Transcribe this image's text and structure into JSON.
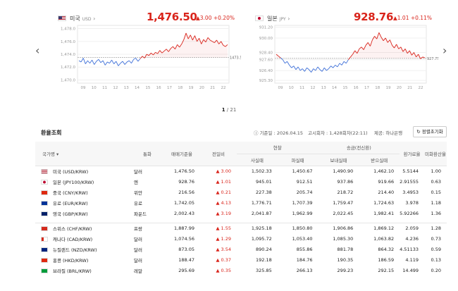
{
  "cards": [
    {
      "name": "미국",
      "unit": "USD",
      "price": "1,476.50",
      "change": "▲3.00",
      "pct": "+0.20%",
      "ymax": "1,478.0",
      "yticks": [
        "1,478.0",
        "1,476.0",
        "1,474.0",
        "1,472.0",
        "1,470.0"
      ],
      "ytickvals": [
        1478,
        1476,
        1474,
        1472,
        1470
      ],
      "xticks": [
        "09",
        "10",
        "11",
        "12",
        "13",
        "14",
        "15",
        "16",
        "17",
        "18",
        "19",
        "20",
        "21",
        "22"
      ],
      "baseline": 1473.5,
      "baseline_label": "1473.5",
      "ymin": 1469.5,
      "ytop": 1478.5,
      "series": [
        1473.0,
        1472.8,
        1473.4,
        1472.5,
        1473.0,
        1472.6,
        1473.1,
        1472.4,
        1472.9,
        1473.2,
        1472.7,
        1473.0,
        1472.3,
        1472.8,
        1472.6,
        1473.1,
        1472.5,
        1472.9,
        1472.2,
        1472.6,
        1472.9,
        1472.4,
        1472.8,
        1473.0,
        1472.6,
        1473.2,
        1473.4,
        1472.9,
        1473.3,
        1473.7,
        1473.4,
        1474.0,
        1473.8,
        1474.2,
        1473.9,
        1474.3,
        1474.1,
        1474.6,
        1474.2,
        1474.5,
        1474.8,
        1474.4,
        1474.9,
        1475.2,
        1474.8,
        1475.5,
        1475.1,
        1475.6,
        1476.3,
        1477.3,
        1476.4,
        1477.0,
        1476.2,
        1476.9,
        1476.0,
        1476.5,
        1475.6,
        1476.3,
        1475.9,
        1476.6,
        1476.2,
        1476.0,
        1475.8,
        1476.2,
        1475.6,
        1476.0,
        1475.4,
        1475.2,
        1475.5
      ]
    },
    {
      "name": "일본",
      "unit": "JPY",
      "price": "928.76",
      "change": "▲1.01",
      "pct": "+0.11%",
      "yticks": [
        "931.20",
        "930.00",
        "928.40",
        "927.60",
        "926.40",
        "925.30"
      ],
      "ytickvals": [
        931.2,
        930.0,
        928.4,
        927.6,
        926.4,
        925.3
      ],
      "xticks": [
        "09",
        "10",
        "11",
        "12",
        "13",
        "14",
        "15",
        "16",
        "17",
        "18",
        "19",
        "20",
        "21",
        "22"
      ],
      "baseline": 927.75,
      "baseline_label": "927.75",
      "ymin": 925.0,
      "ytop": 931.4,
      "series": [
        928.2,
        928.0,
        927.8,
        927.6,
        927.2,
        927.4,
        927.0,
        926.7,
        926.9,
        926.5,
        926.8,
        926.4,
        926.6,
        926.3,
        926.7,
        926.5,
        926.2,
        926.6,
        926.4,
        926.8,
        926.5,
        926.3,
        926.7,
        926.4,
        926.6,
        926.9,
        926.7,
        927.0,
        926.8,
        927.2,
        927.0,
        927.4,
        927.2,
        927.6,
        927.9,
        928.2,
        928.6,
        928.3,
        928.8,
        929.0,
        928.7,
        929.2,
        929.5,
        929.1,
        929.8,
        930.2,
        929.9,
        930.6,
        930.1,
        929.7,
        930.0,
        929.5,
        929.8,
        929.2,
        928.9,
        929.3,
        928.8,
        929.0,
        928.5,
        928.8,
        928.3,
        928.6,
        928.1,
        928.4,
        927.9,
        928.2,
        927.7,
        927.9,
        927.8
      ]
    }
  ],
  "pager": {
    "current": "1",
    "total": "/ 21"
  },
  "section": {
    "title": "환율조회",
    "date": "ⓘ 기준일 : 2026.04.15",
    "notice": "고시회차 : 1,428회차(22:11)",
    "provider": "제공: 하나은행",
    "refresh": "↻ 정렬초기화"
  },
  "table": {
    "head": {
      "country": "국가명 ▾",
      "currency": "통화",
      "base": "매매기준율",
      "change": "전일비",
      "cash": "현찰",
      "cash_buy": "사실때",
      "cash_sell": "파실때",
      "wire": "송금(전신환)",
      "wire_send": "보내실때",
      "wire_recv": "받으실때",
      "usd_rate": "환가료율",
      "usd_conv": "미화환산율"
    },
    "rows": [
      {
        "flag": "us",
        "country": "미국 (USD/KRW)",
        "currency": "달러",
        "base": "1,476.50",
        "change": "▲ 3.00",
        "cash_buy": "1,502.33",
        "cash_sell": "1,450.67",
        "wire_send": "1,490.90",
        "wire_recv": "1,462.10",
        "usd_rate": "5.5144",
        "usd_conv": "1.00"
      },
      {
        "flag": "jp",
        "country": "일본 (JPY100/KRW)",
        "currency": "엔",
        "base": "928.76",
        "change": "▲ 1.01",
        "cash_buy": "945.01",
        "cash_sell": "912.51",
        "wire_send": "937.86",
        "wire_recv": "919.66",
        "usd_rate": "2.91555",
        "usd_conv": "0.63"
      },
      {
        "flag": "cn",
        "country": "중국 (CNY/KRW)",
        "currency": "위안",
        "base": "216.56",
        "change": "▲ 0.21",
        "cash_buy": "227.38",
        "cash_sell": "205.74",
        "wire_send": "218.72",
        "wire_recv": "214.40",
        "usd_rate": "3.4953",
        "usd_conv": "0.15"
      },
      {
        "flag": "eu",
        "country": "유로 (EUR/KRW)",
        "currency": "유로",
        "base": "1,742.05",
        "change": "▲ 4.13",
        "cash_buy": "1,776.71",
        "cash_sell": "1,707.39",
        "wire_send": "1,759.47",
        "wire_recv": "1,724.63",
        "usd_rate": "3.978",
        "usd_conv": "1.18"
      },
      {
        "flag": "gb",
        "country": "영국 (GBP/KRW)",
        "currency": "파운드",
        "base": "2,002.43",
        "change": "▲ 3.19",
        "cash_buy": "2,041.87",
        "cash_sell": "1,962.99",
        "wire_send": "2,022.45",
        "wire_recv": "1,982.41",
        "usd_rate": "5.92266",
        "usd_conv": "1.36"
      },
      {
        "flag": "ch",
        "country": "스위스 (CHF/KRW)",
        "currency": "프랑",
        "base": "1,887.99",
        "change": "▲ 1.55",
        "cash_buy": "1,925.18",
        "cash_sell": "1,850.80",
        "wire_send": "1,906.86",
        "wire_recv": "1,869.12",
        "usd_rate": "2.059",
        "usd_conv": "1.28"
      },
      {
        "flag": "ca",
        "country": "캐나다 (CAD/KRW)",
        "currency": "달러",
        "base": "1,074.56",
        "change": "▲ 1.29",
        "cash_buy": "1,095.72",
        "cash_sell": "1,053.40",
        "wire_send": "1,085.30",
        "wire_recv": "1,063.82",
        "usd_rate": "4.236",
        "usd_conv": "0.73"
      },
      {
        "flag": "nz",
        "country": "뉴질랜드 (NZD/KRW)",
        "currency": "달러",
        "base": "873.05",
        "change": "▲ 3.54",
        "cash_buy": "890.24",
        "cash_sell": "855.86",
        "wire_send": "881.78",
        "wire_recv": "864.32",
        "usd_rate": "4.51133",
        "usd_conv": "0.59"
      },
      {
        "flag": "hk",
        "country": "홍콩 (HKD/KRW)",
        "currency": "달러",
        "base": "188.47",
        "change": "▲ 0.37",
        "cash_buy": "192.18",
        "cash_sell": "184.76",
        "wire_send": "190.35",
        "wire_recv": "186.59",
        "usd_rate": "4.119",
        "usd_conv": "0.13"
      },
      {
        "flag": "br",
        "country": "브라질 (BRL/KRW)",
        "currency": "레알",
        "base": "295.69",
        "change": "▲ 0.35",
        "cash_buy": "325.85",
        "cash_sell": "266.13",
        "wire_send": "299.23",
        "wire_recv": "292.15",
        "usd_rate": "14.499",
        "usd_conv": "0.20"
      }
    ]
  },
  "colors": {
    "up": "#d9241b",
    "down": "#3d6fd8",
    "header_bg": "#f7f7f7"
  }
}
